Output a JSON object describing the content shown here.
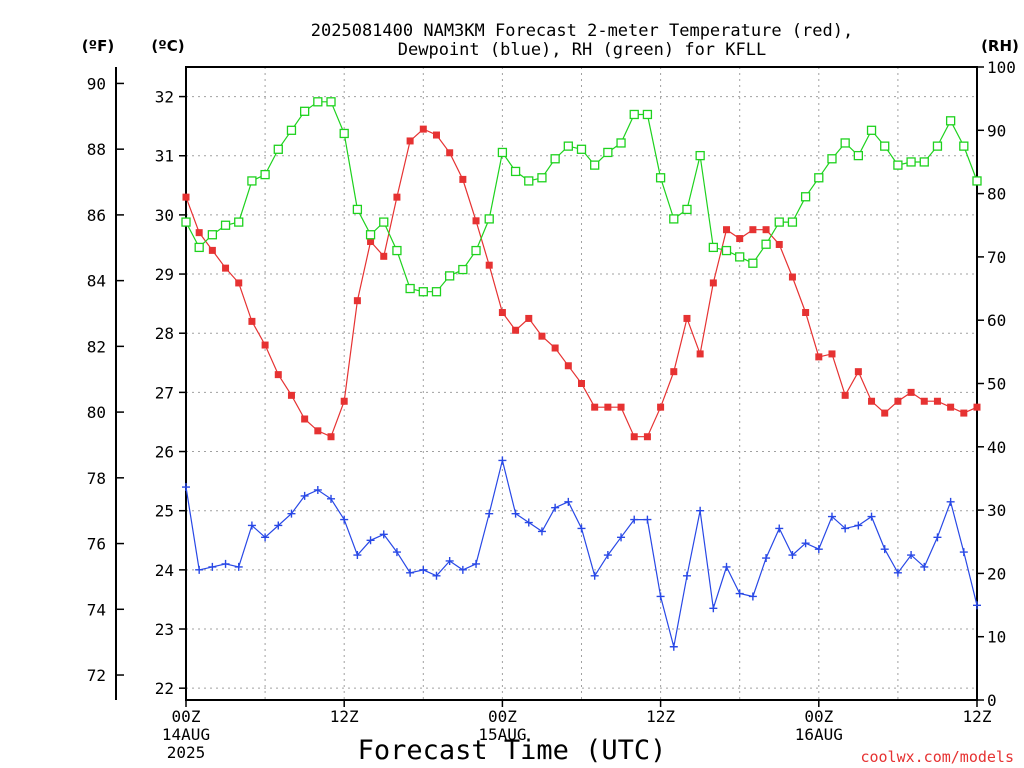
{
  "chart_data": {
    "type": "line",
    "title_line1": "2025081400 NAM3KM Forecast 2-meter Temperature (red),",
    "title_line2": "Dewpoint (blue), RH (green) for KFLL",
    "xlabel": "Forecast Time (UTC)",
    "watermark": "coolwx.com/models",
    "axis_labels": {
      "fahrenheit": "(ºF)",
      "celsius": "(ºC)",
      "rh": "(RH)"
    },
    "x_range_hours": [
      0,
      60
    ],
    "x_ticks": [
      {
        "hour": 0,
        "label": "00Z",
        "sub1": "14AUG",
        "sub2": "2025"
      },
      {
        "hour": 12,
        "label": "12Z",
        "sub1": "",
        "sub2": ""
      },
      {
        "hour": 24,
        "label": "00Z",
        "sub1": "15AUG",
        "sub2": ""
      },
      {
        "hour": 36,
        "label": "12Z",
        "sub1": "",
        "sub2": ""
      },
      {
        "hour": 48,
        "label": "00Z",
        "sub1": "16AUG",
        "sub2": ""
      },
      {
        "hour": 60,
        "label": "12Z",
        "sub1": "",
        "sub2": ""
      }
    ],
    "celsius_range": [
      21.8,
      32.5
    ],
    "celsius_ticks": [
      "22",
      "23",
      "24",
      "25",
      "26",
      "27",
      "28",
      "29",
      "30",
      "31",
      "32"
    ],
    "fahrenheit_ticks": [
      "72",
      "74",
      "76",
      "78",
      "80",
      "82",
      "84",
      "86",
      "88",
      "90"
    ],
    "rh_range": [
      0,
      100
    ],
    "rh_ticks": [
      "0",
      "10",
      "20",
      "30",
      "40",
      "50",
      "60",
      "70",
      "80",
      "90",
      "100"
    ],
    "grid": true,
    "series": [
      {
        "name": "Temperature",
        "color": "#e63232",
        "marker": "filled-square",
        "axis": "celsius",
        "x": [
          0,
          1,
          2,
          3,
          4,
          5,
          6,
          7,
          8,
          9,
          10,
          11,
          12,
          13,
          14,
          15,
          16,
          17,
          18,
          19,
          20,
          21,
          22,
          23,
          24,
          25,
          26,
          27,
          28,
          29,
          30,
          31,
          32,
          33,
          34,
          35,
          36,
          37,
          38,
          39,
          40,
          41,
          42,
          43,
          44,
          45,
          46,
          47,
          48,
          49,
          50,
          51,
          52,
          53,
          54,
          55,
          56,
          57,
          58,
          59,
          60
        ],
        "values": [
          30.3,
          29.7,
          29.4,
          29.1,
          28.85,
          28.2,
          27.8,
          27.3,
          26.95,
          26.55,
          26.35,
          26.25,
          26.85,
          28.55,
          29.55,
          29.3,
          30.3,
          31.25,
          31.45,
          31.35,
          31.05,
          30.6,
          29.9,
          29.15,
          28.35,
          28.05,
          28.25,
          27.95,
          27.75,
          27.45,
          27.15,
          26.75,
          26.75,
          26.75,
          26.25,
          26.25,
          26.75,
          27.35,
          28.25,
          27.65,
          28.85,
          29.75,
          29.6,
          29.75,
          29.75,
          29.5,
          28.95,
          28.35,
          27.6,
          27.65,
          26.95,
          27.35,
          26.85,
          26.65,
          26.85,
          27.0,
          26.85,
          26.85,
          26.75,
          26.65,
          26.75
        ]
      },
      {
        "name": "Dewpoint",
        "color": "#2848e6",
        "marker": "plus",
        "axis": "celsius",
        "x": [
          0,
          1,
          2,
          3,
          4,
          5,
          6,
          7,
          8,
          9,
          10,
          11,
          12,
          13,
          14,
          15,
          16,
          17,
          18,
          19,
          20,
          21,
          22,
          23,
          24,
          25,
          26,
          27,
          28,
          29,
          30,
          31,
          32,
          33,
          34,
          35,
          36,
          37,
          38,
          39,
          40,
          41,
          42,
          43,
          44,
          45,
          46,
          47,
          48,
          49,
          50,
          51,
          52,
          53,
          54,
          55,
          56,
          57,
          58,
          59,
          60
        ],
        "values": [
          25.4,
          24.0,
          24.05,
          24.1,
          24.05,
          24.75,
          24.55,
          24.75,
          24.95,
          25.25,
          25.35,
          25.2,
          24.85,
          24.25,
          24.5,
          24.6,
          24.3,
          23.95,
          24.0,
          23.9,
          24.15,
          24.0,
          24.1,
          24.95,
          25.85,
          24.95,
          24.8,
          24.65,
          25.05,
          25.15,
          24.7,
          23.9,
          24.25,
          24.55,
          24.85,
          24.85,
          23.55,
          22.7,
          23.9,
          25.0,
          23.35,
          24.05,
          23.6,
          23.55,
          24.2,
          24.7,
          24.25,
          24.45,
          24.35,
          24.9,
          24.7,
          24.75,
          24.9,
          24.35,
          23.95,
          24.25,
          24.05,
          24.55,
          25.15,
          24.3,
          23.4
        ]
      },
      {
        "name": "RH",
        "color": "#1ed21e",
        "marker": "open-square",
        "axis": "rh",
        "x": [
          0,
          1,
          2,
          3,
          4,
          5,
          6,
          7,
          8,
          9,
          10,
          11,
          12,
          13,
          14,
          15,
          16,
          17,
          18,
          19,
          20,
          21,
          22,
          23,
          24,
          25,
          26,
          27,
          28,
          29,
          30,
          31,
          32,
          33,
          34,
          35,
          36,
          37,
          38,
          39,
          40,
          41,
          42,
          43,
          44,
          45,
          46,
          47,
          48,
          49,
          50,
          51,
          52,
          53,
          54,
          55,
          56,
          57,
          58,
          59,
          60
        ],
        "values": [
          75.5,
          71.5,
          73.5,
          75,
          75.5,
          82,
          83,
          87,
          90,
          93,
          94.5,
          94.5,
          89.5,
          77.5,
          73.5,
          75.5,
          71,
          65,
          64.5,
          64.5,
          67,
          68,
          71,
          76,
          86.5,
          83.5,
          82,
          82.5,
          85.5,
          87.5,
          87,
          84.5,
          86.5,
          88,
          92.5,
          92.5,
          82.5,
          76,
          77.5,
          86,
          71.5,
          71,
          70,
          69,
          72,
          75.5,
          75.5,
          79.5,
          82.5,
          85.5,
          88,
          86,
          90,
          87.5,
          84.5,
          85,
          85,
          87.5,
          91.5,
          87.5,
          82
        ]
      }
    ]
  }
}
